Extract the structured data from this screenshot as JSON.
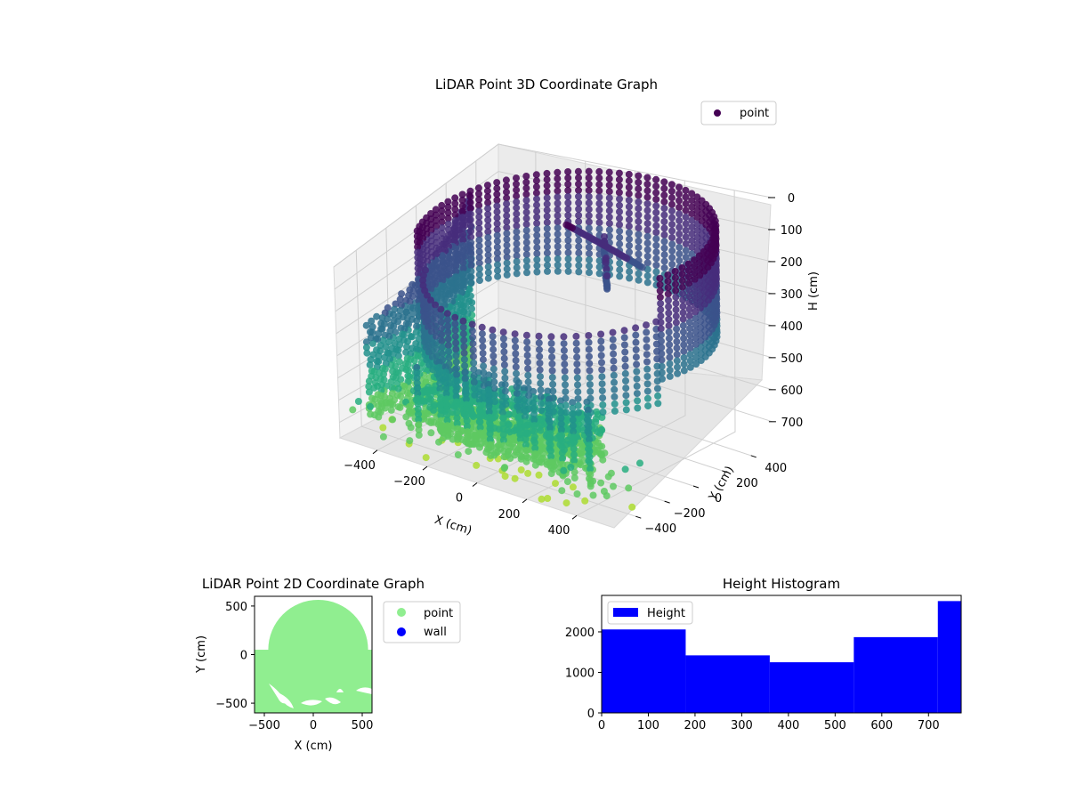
{
  "figure": {
    "background": "#ffffff"
  },
  "chart_data": [
    {
      "id": "lidar3d",
      "type": "scatter",
      "title": "LiDAR Point 3D Coordinate Graph",
      "xlabel": "X (cm)",
      "ylabel": "Y (cm)",
      "zlabel": "H (cm)",
      "xlim": [
        -550,
        550
      ],
      "ylim": [
        -550,
        550
      ],
      "zlim": [
        0,
        770
      ],
      "z_inverted": true,
      "xticks": [
        -400,
        -200,
        0,
        200,
        400
      ],
      "yticks": [
        -400,
        -200,
        0,
        200,
        400
      ],
      "zticks": [
        0,
        100,
        200,
        300,
        400,
        500,
        600,
        700
      ],
      "grid": true,
      "legend": {
        "position": "top-right",
        "entries": [
          {
            "label": "point",
            "color": "#440154"
          }
        ]
      },
      "colormap": [
        "#440154",
        "#472d7b",
        "#3b528b",
        "#2c728e",
        "#21918c",
        "#28ae80",
        "#5ec962",
        "#addc30"
      ],
      "series": [
        {
          "name": "point",
          "structures": [
            {
              "kind": "cylindrical-wall",
              "center": [
                50,
                0
              ],
              "radius": 520,
              "arc_deg": [
                -20,
                200
              ],
              "h": [
                0,
                360
              ]
            },
            {
              "kind": "curved-wall",
              "x": [
                -520,
                -470
              ],
              "y": [
                -400,
                300
              ],
              "h": [
                60,
                720
              ]
            },
            {
              "kind": "floor-patch",
              "x": [
                -380,
                280
              ],
              "y": [
                -400,
                -100
              ],
              "h": [
                560,
                720
              ]
            },
            {
              "kind": "hanging-columns",
              "x": [
                -250,
                450
              ],
              "y": [
                -520,
                -420
              ],
              "h": [
                380,
                680
              ]
            },
            {
              "kind": "cross-structure",
              "center": [
                60,
                250
              ],
              "h": [
                60,
                440
              ]
            }
          ]
        }
      ]
    },
    {
      "id": "lidar2d",
      "type": "scatter",
      "title": "LiDAR Point 2D Coordinate Graph",
      "xlabel": "X (cm)",
      "ylabel": "Y (cm)",
      "xlim": [
        -600,
        600
      ],
      "ylim": [
        -600,
        600
      ],
      "xticks": [
        -500,
        0,
        500
      ],
      "yticks": [
        -500,
        0,
        500
      ],
      "legend": {
        "position": "outside-right",
        "entries": [
          {
            "label": "point",
            "color": "#90ee90"
          },
          {
            "label": "wall",
            "color": "#0000ff"
          }
        ]
      },
      "series": [
        {
          "name": "point",
          "color": "#90ee90",
          "region": {
            "circle_center": [
              50,
              50
            ],
            "circle_radius": 510,
            "left_band_y": [
              -600,
              50
            ]
          }
        },
        {
          "name": "wall",
          "color": "#0000ff",
          "count": 0
        }
      ]
    },
    {
      "id": "height_hist",
      "type": "bar",
      "title": "Height Histogram",
      "xlabel": "",
      "ylabel": "",
      "xlim": [
        0,
        770
      ],
      "ylim": [
        0,
        2900
      ],
      "xticks": [
        0,
        100,
        200,
        300,
        400,
        500,
        600,
        700
      ],
      "yticks": [
        0,
        1000,
        2000
      ],
      "bin_edges": [
        0,
        180,
        360,
        540,
        720,
        770
      ],
      "values": [
        2060,
        1420,
        1250,
        1870,
        2760
      ],
      "legend": {
        "position": "top-left",
        "entries": [
          {
            "label": "Height",
            "color": "#0000ff"
          }
        ]
      },
      "series": [
        {
          "name": "Height",
          "color": "#0000ff"
        }
      ]
    }
  ]
}
